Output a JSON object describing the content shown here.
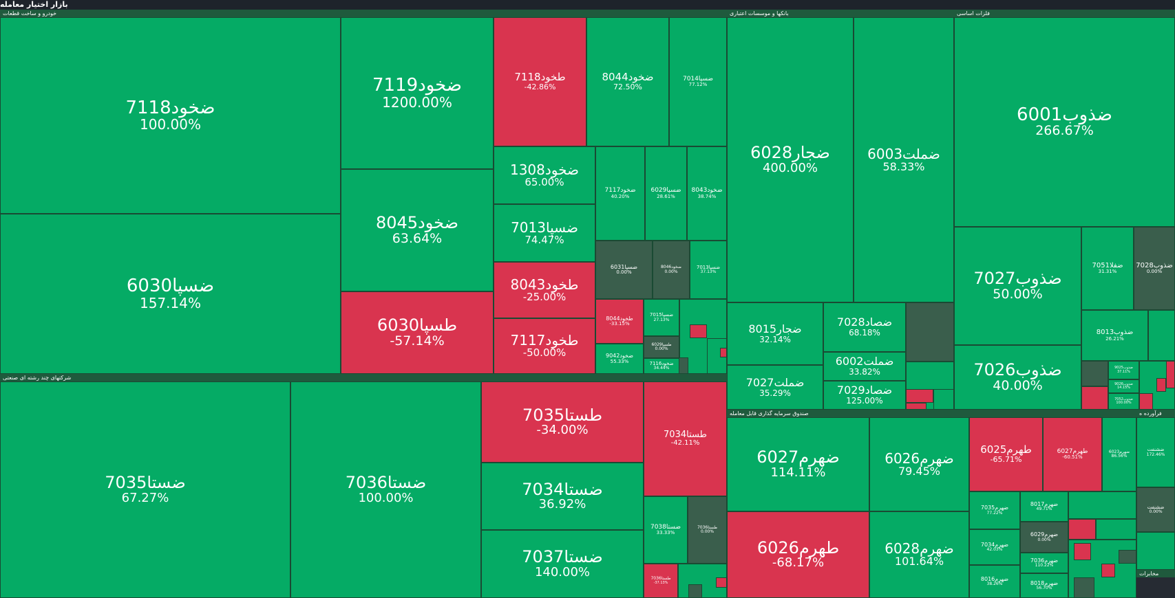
{
  "app": {
    "title": "بازار اختیار معامله"
  },
  "colors": {
    "up": "#05ab65",
    "down": "#d9344f",
    "flat": "#3a5e4c",
    "background": "#262b33"
  },
  "chart_data": {
    "type": "heatmap",
    "title": "بازار اختیار معامله",
    "sectors": [
      {
        "name": "خودرو و ساخت قطعات",
        "items": [
          {
            "symbol": "ضخود7118",
            "change": "100.00%"
          },
          {
            "symbol": "ضسپا6030",
            "change": "157.14%"
          },
          {
            "symbol": "ضخود7119",
            "change": "1200.00%"
          },
          {
            "symbol": "ضخود8045",
            "change": "63.64%"
          },
          {
            "symbol": "طسپا6030",
            "change": "-57.14%"
          },
          {
            "symbol": "طخود7118",
            "change": "-42.86%"
          },
          {
            "symbol": "ضخود8044",
            "change": "72.50%"
          },
          {
            "symbol": "ضسپا7014",
            "change": "77.12%"
          },
          {
            "symbol": "ضخود1308",
            "change": "65.00%"
          },
          {
            "symbol": "ضسپا7013",
            "change": "74.47%"
          },
          {
            "symbol": "طخود8043",
            "change": "-25.00%"
          },
          {
            "symbol": "طخود7117",
            "change": "-50.00%"
          },
          {
            "symbol": "ضخود7117",
            "change": "40.20%"
          },
          {
            "symbol": "ضسپا6029",
            "change": "28.61%"
          },
          {
            "symbol": "ضخود8043",
            "change": "38.74%"
          },
          {
            "symbol": "ضسپا6031",
            "change": "0.00%"
          },
          {
            "symbol": "ضخود8046",
            "change": "0.00%"
          },
          {
            "symbol": "ضسپا7013",
            "change": "37.13%"
          },
          {
            "symbol": "طخود8044",
            "change": "-33.15%"
          },
          {
            "symbol": "ضخود9042",
            "change": "55.33%"
          },
          {
            "symbol": "ضسپا7015",
            "change": "27.13%"
          },
          {
            "symbol": "طسپا6029",
            "change": "0.00%"
          },
          {
            "symbol": "ضخود7116",
            "change": "34.44%"
          }
        ]
      },
      {
        "name": "بانکها و موسسات اعتباری",
        "items": [
          {
            "symbol": "ضجار6028",
            "change": "400.00%"
          },
          {
            "symbol": "ضملت6003",
            "change": "58.33%"
          },
          {
            "symbol": "ضجار8015",
            "change": "32.14%"
          },
          {
            "symbol": "ضملت7027",
            "change": "35.29%"
          },
          {
            "symbol": "ضصاد7028",
            "change": "68.18%"
          },
          {
            "symbol": "ضملت6002",
            "change": "33.82%"
          },
          {
            "symbol": "ضصاد7029",
            "change": "125.00%"
          }
        ]
      },
      {
        "name": "فلزات اساسی",
        "items": [
          {
            "symbol": "ضذوب6001",
            "change": "266.67%"
          },
          {
            "symbol": "ضذوب7027",
            "change": "50.00%"
          },
          {
            "symbol": "ضذوب7026",
            "change": "40.00%"
          },
          {
            "symbol": "ضفلا7051",
            "change": "31.31%"
          },
          {
            "symbol": "ضذوب7028",
            "change": "0.00%"
          },
          {
            "symbol": "ضذوب8013",
            "change": "26.21%"
          },
          {
            "symbol": "ضذوب9025",
            "change": "37.11%"
          },
          {
            "symbol": "ضذوب9026",
            "change": "14.15%"
          },
          {
            "symbol": "ضذوب7052",
            "change": "100.00%"
          }
        ]
      },
      {
        "name": "شرکتهای چند رشته ای صنعتی",
        "items": [
          {
            "symbol": "ضستا7035",
            "change": "67.27%"
          },
          {
            "symbol": "ضستا7036",
            "change": "100.00%"
          },
          {
            "symbol": "طستا7035",
            "change": "-34.00%"
          },
          {
            "symbol": "طستا7034",
            "change": "-42.11%"
          },
          {
            "symbol": "ضستا7034",
            "change": "36.92%"
          },
          {
            "symbol": "ضستا7037",
            "change": "140.00%"
          },
          {
            "symbol": "ضستا7038",
            "change": "33.33%"
          },
          {
            "symbol": "طستا7036",
            "change": "0.00%"
          },
          {
            "symbol": "طستا7036",
            "change": "-37.13%"
          }
        ]
      },
      {
        "name": "صندوق سرمایه گذاری قابل معامله",
        "items": [
          {
            "symbol": "ضهرم6027",
            "change": "114.11%"
          },
          {
            "symbol": "ضهرم6026",
            "change": "79.45%"
          },
          {
            "symbol": "طهرم6025",
            "change": "-65.71%"
          },
          {
            "symbol": "طهرم6027",
            "change": "-60.51%"
          },
          {
            "symbol": "ضهرم6023",
            "change": "86.56%"
          },
          {
            "symbol": "طهرم6026",
            "change": "-68.17%"
          },
          {
            "symbol": "ضهرم6028",
            "change": "101.64%"
          },
          {
            "symbol": "ضهرم7035",
            "change": "77.22%"
          },
          {
            "symbol": "ضهرم8017",
            "change": "49.71%"
          },
          {
            "symbol": "ضهرم7034",
            "change": "42.03%"
          },
          {
            "symbol": "ضهرم6029",
            "change": "0.00%"
          },
          {
            "symbol": "ضهرم7036",
            "change": "110.22%"
          },
          {
            "symbol": "ضهرم8016",
            "change": "38.26%"
          },
          {
            "symbol": "ضهرم8018",
            "change": "56.70%"
          }
        ]
      },
      {
        "name": "فرآورده ه",
        "items": [
          {
            "symbol": "ضشنفت",
            "change": "172.46%"
          },
          {
            "symbol": "ضشنفت",
            "change": "0.00%"
          }
        ]
      },
      {
        "name": "مخابرات",
        "items": []
      }
    ]
  }
}
